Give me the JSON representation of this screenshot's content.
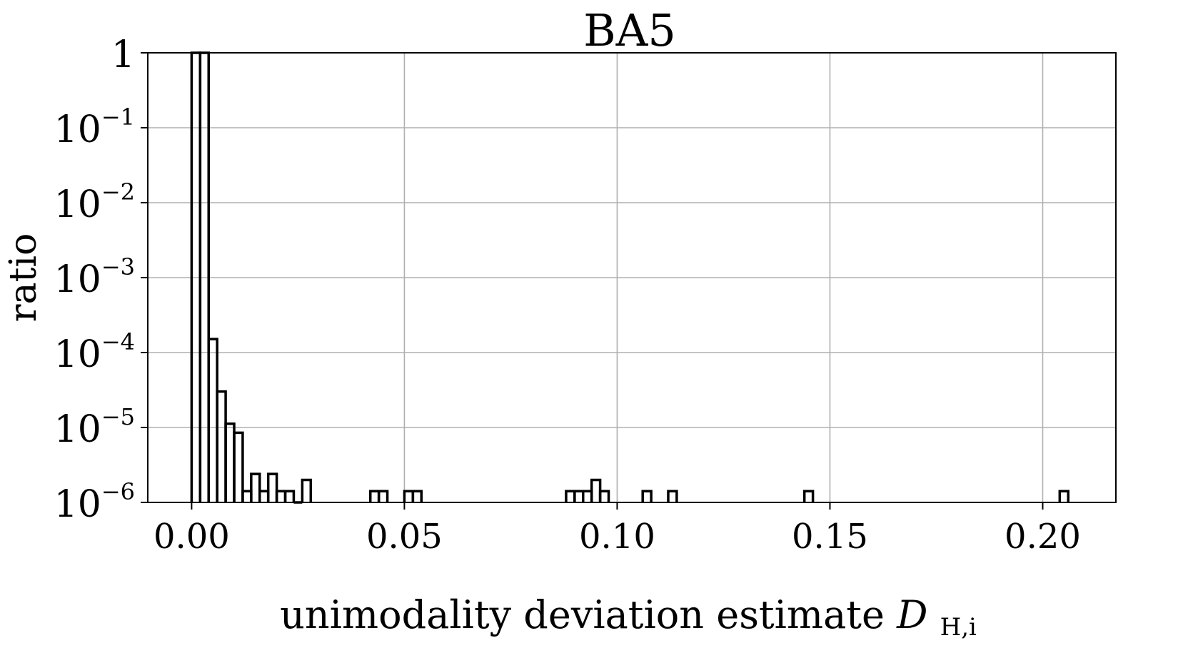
{
  "chart_data": {
    "type": "histogram-step",
    "title": "BA5",
    "xlabel_text": "unimodality deviation estimate ",
    "xlabel_symbol": "D",
    "xlabel_subscript": "H,i",
    "ylabel": "ratio",
    "y_scale": "log",
    "xlim": [
      -0.0103,
      0.2172
    ],
    "ylim_log10": [
      -6,
      0
    ],
    "grid": true,
    "x_ticks": [
      {
        "value": 0.0,
        "label": "0.00"
      },
      {
        "value": 0.05,
        "label": "0.05"
      },
      {
        "value": 0.1,
        "label": "0.10"
      },
      {
        "value": 0.15,
        "label": "0.15"
      },
      {
        "value": 0.2,
        "label": "0.20"
      }
    ],
    "y_ticks": [
      {
        "exp": 0,
        "base": "1",
        "sup": ""
      },
      {
        "exp": -1,
        "base": "10",
        "sup": "−1"
      },
      {
        "exp": -2,
        "base": "10",
        "sup": "−2"
      },
      {
        "exp": -3,
        "base": "10",
        "sup": "−3"
      },
      {
        "exp": -4,
        "base": "10",
        "sup": "−4"
      },
      {
        "exp": -5,
        "base": "10",
        "sup": "−5"
      },
      {
        "exp": -6,
        "base": "10",
        "sup": "−6"
      }
    ],
    "bin_width": 0.002,
    "bins": [
      {
        "x0": 0.0,
        "log10": 0.0
      },
      {
        "x0": 0.002,
        "log10": 0.0
      },
      {
        "x0": 0.004,
        "log10": -3.82
      },
      {
        "x0": 0.006,
        "log10": -4.52
      },
      {
        "x0": 0.008,
        "log10": -4.95
      },
      {
        "x0": 0.01,
        "log10": -5.07
      },
      {
        "x0": 0.012,
        "log10": -5.85
      },
      {
        "x0": 0.014,
        "log10": -5.62
      },
      {
        "x0": 0.016,
        "log10": -5.85
      },
      {
        "x0": 0.018,
        "log10": -5.62
      },
      {
        "x0": 0.02,
        "log10": -5.85
      },
      {
        "x0": 0.022,
        "log10": -5.85
      },
      {
        "x0": 0.024,
        "log10": -6.0
      },
      {
        "x0": 0.026,
        "log10": -5.7
      },
      {
        "x0": 0.042,
        "log10": -5.85
      },
      {
        "x0": 0.044,
        "log10": -5.85
      },
      {
        "x0": 0.05,
        "log10": -5.85
      },
      {
        "x0": 0.052,
        "log10": -5.85
      },
      {
        "x0": 0.088,
        "log10": -5.85
      },
      {
        "x0": 0.09,
        "log10": -5.85
      },
      {
        "x0": 0.092,
        "log10": -5.85
      },
      {
        "x0": 0.094,
        "log10": -5.7
      },
      {
        "x0": 0.096,
        "log10": -5.85
      },
      {
        "x0": 0.106,
        "log10": -5.85
      },
      {
        "x0": 0.112,
        "log10": -5.85
      },
      {
        "x0": 0.144,
        "log10": -5.85
      },
      {
        "x0": 0.204,
        "log10": -5.85
      }
    ]
  }
}
